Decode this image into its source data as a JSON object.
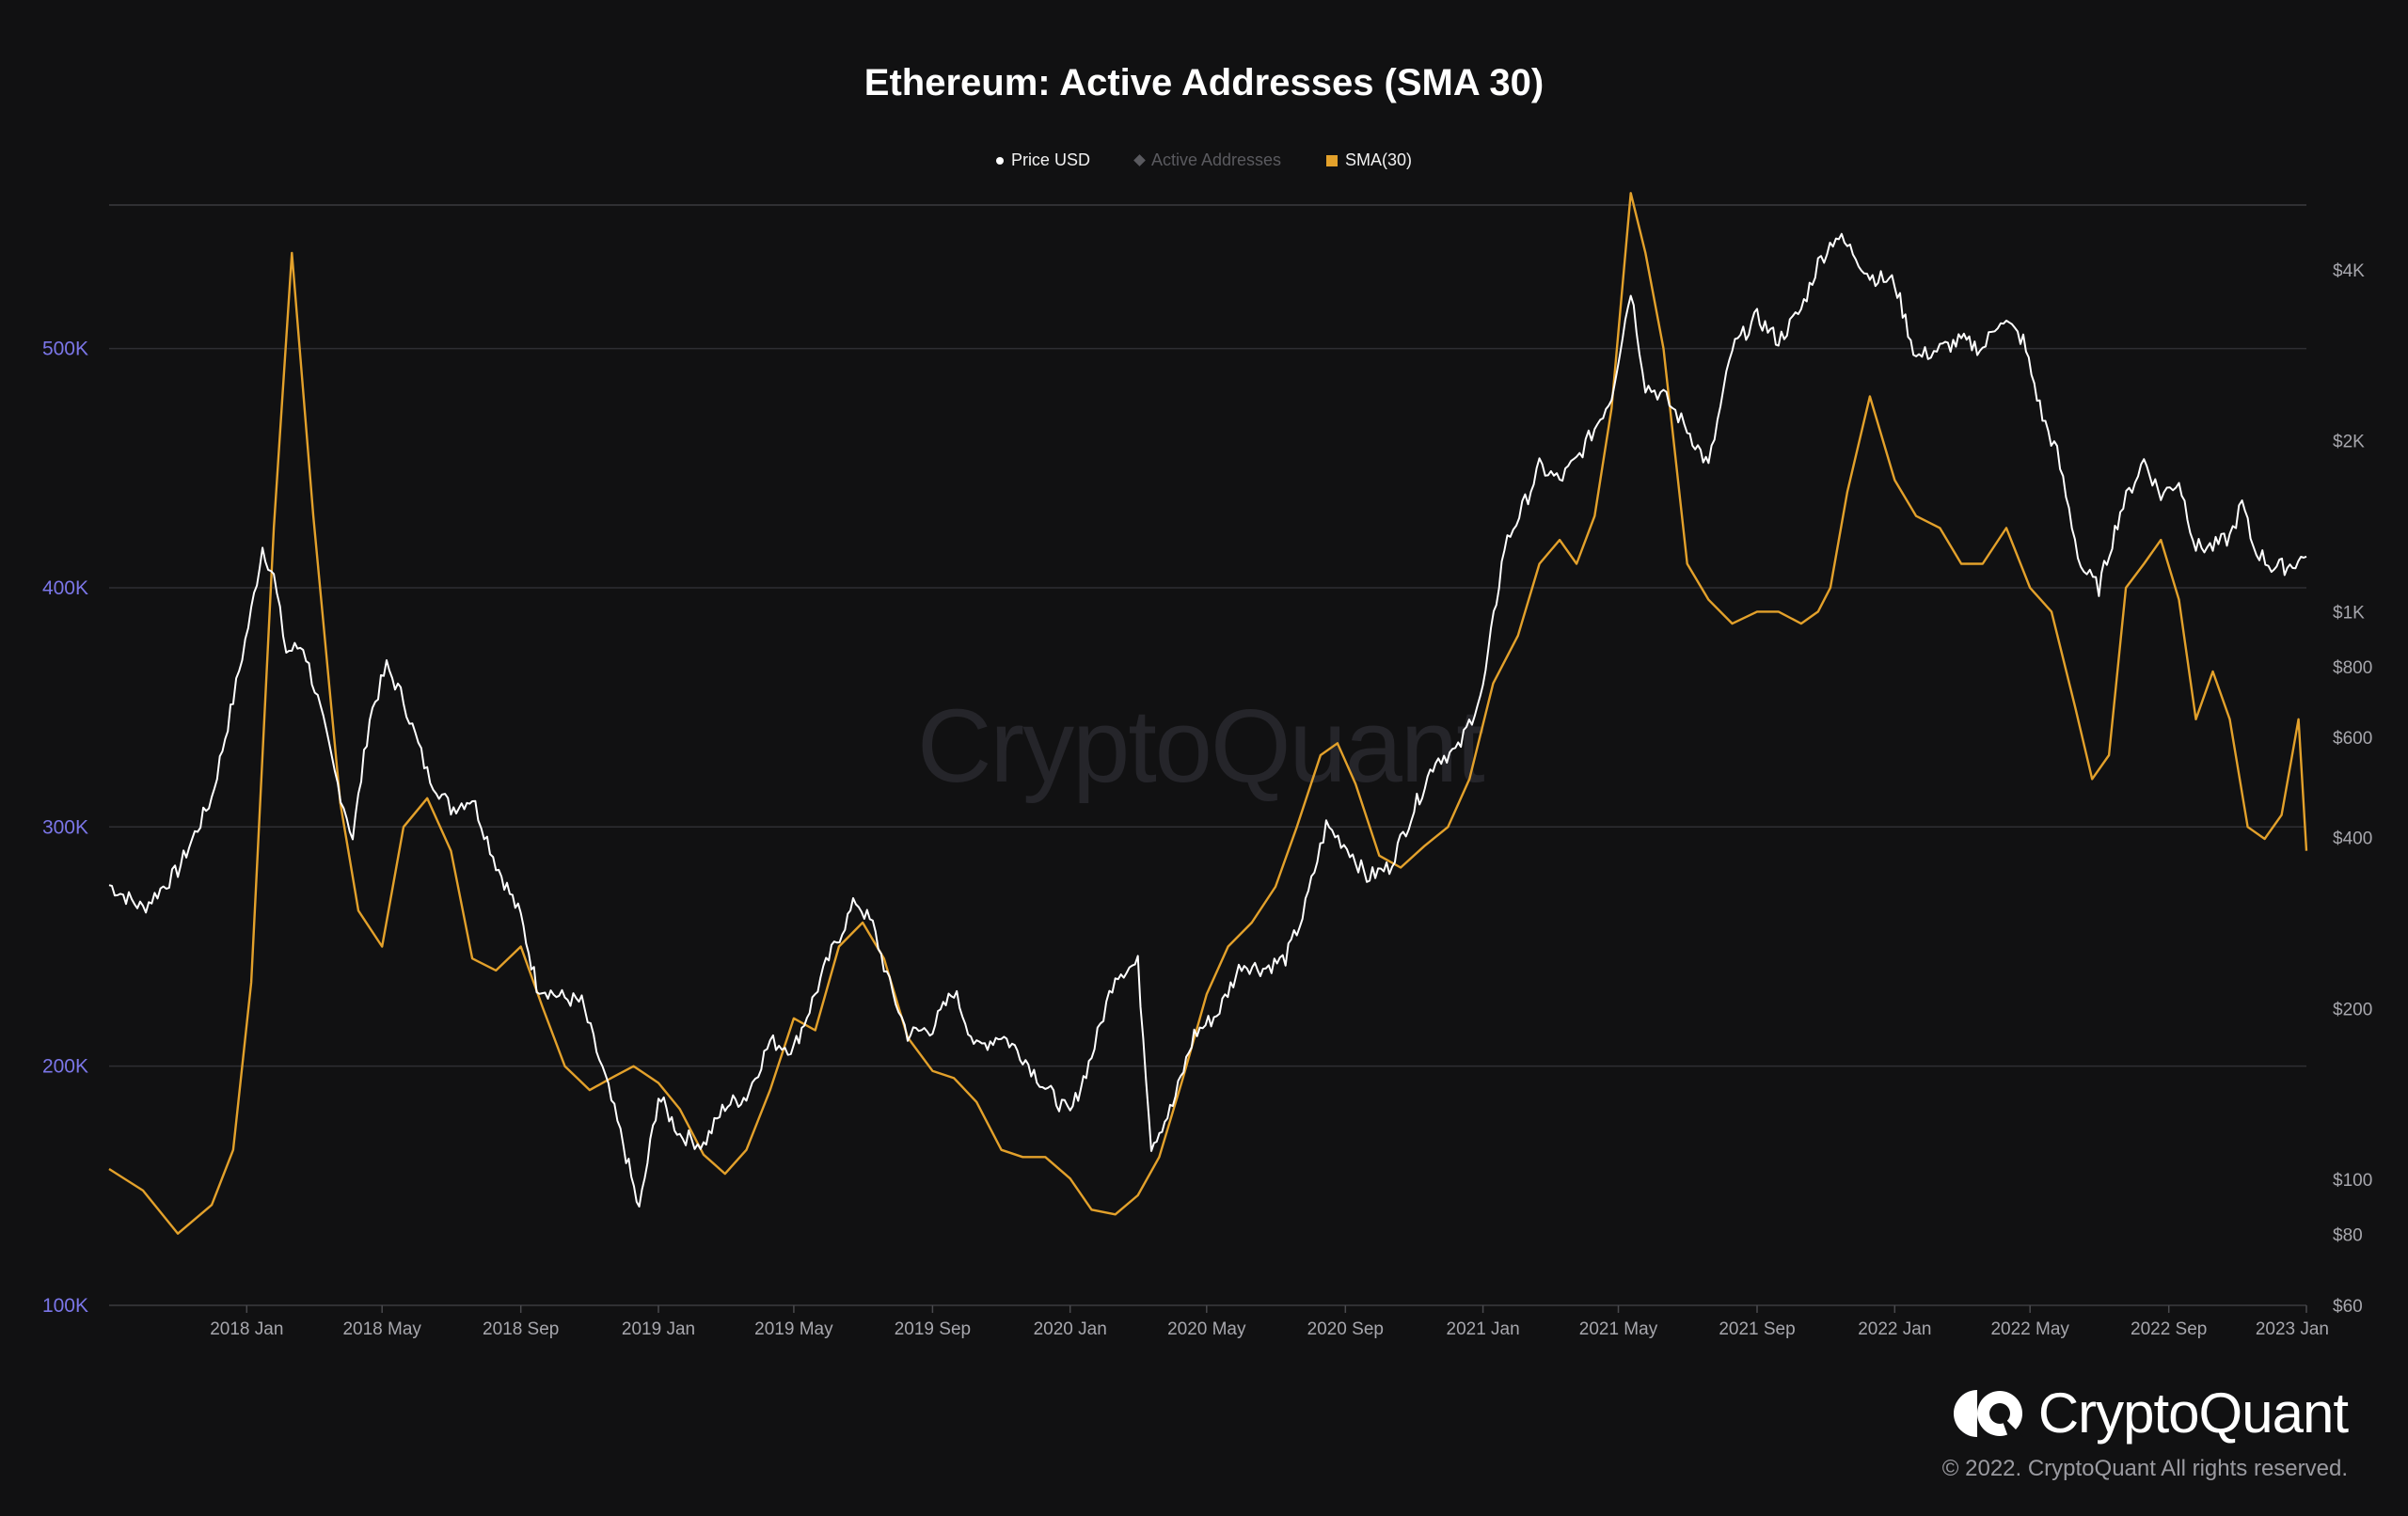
{
  "title": "Ethereum: Active Addresses (SMA 30)",
  "legend": [
    {
      "label": "Price USD",
      "marker": "dot"
    },
    {
      "label": "Active Addresses",
      "marker": "diamond"
    },
    {
      "label": "SMA(30)",
      "marker": "square"
    }
  ],
  "watermark": "CryptoQuant",
  "brand": {
    "name": "CryptoQuant",
    "copyright": "© 2022. CryptoQuant All rights reserved."
  },
  "colors": {
    "price": "#ffffff",
    "sma": "#e3a12b",
    "left_axis": "#7b76e8",
    "right_axis": "#a7a7ad",
    "active_addresses_legend": "#5a5a5f",
    "background": "#111112"
  },
  "chart_data": {
    "type": "line",
    "x_ticks": [
      "2018 Jan",
      "2018 May",
      "2018 Sep",
      "2019 Jan",
      "2019 May",
      "2019 Sep",
      "2020 Jan",
      "2020 May",
      "2020 Sep",
      "2021 Jan",
      "2021 May",
      "2021 Sep",
      "2022 Jan",
      "2022 May",
      "2022 Sep",
      "2023 Jan"
    ],
    "y_left": {
      "label": "",
      "ticks": [
        "100K",
        "200K",
        "300K",
        "400K",
        "500K"
      ],
      "range": [
        100000,
        560000
      ]
    },
    "y_right": {
      "label": "",
      "scale": "log",
      "ticks": [
        "$60",
        "$80",
        "$100",
        "$200",
        "$400",
        "$600",
        "$800",
        "$1K",
        "$2K",
        "$4K"
      ],
      "range": [
        60,
        5200
      ]
    },
    "grid": true,
    "legend_position": "top-center",
    "series": [
      {
        "name": "SMA(30)",
        "axis": "left",
        "x": [
          "2017-09-01",
          "2017-10-01",
          "2017-11-01",
          "2017-12-01",
          "2017-12-20",
          "2018-01-05",
          "2018-01-15",
          "2018-01-25",
          "2018-02-10",
          "2018-03-01",
          "2018-03-25",
          "2018-04-10",
          "2018-05-01",
          "2018-05-20",
          "2018-06-10",
          "2018-07-01",
          "2018-07-20",
          "2018-08-10",
          "2018-09-01",
          "2018-09-20",
          "2018-10-10",
          "2018-11-01",
          "2018-11-20",
          "2018-12-10",
          "2019-01-01",
          "2019-01-20",
          "2019-02-10",
          "2019-03-01",
          "2019-03-20",
          "2019-04-10",
          "2019-05-01",
          "2019-05-20",
          "2019-06-10",
          "2019-07-01",
          "2019-07-20",
          "2019-08-10",
          "2019-09-01",
          "2019-09-20",
          "2019-10-10",
          "2019-11-01",
          "2019-11-20",
          "2019-12-10",
          "2020-01-01",
          "2020-01-20",
          "2020-02-10",
          "2020-03-01",
          "2020-03-20",
          "2020-04-10",
          "2020-05-01",
          "2020-05-20",
          "2020-06-10",
          "2020-07-01",
          "2020-07-20",
          "2020-08-10",
          "2020-08-25",
          "2020-09-10",
          "2020-10-01",
          "2020-10-20",
          "2020-11-10",
          "2020-12-01",
          "2020-12-20",
          "2021-01-10",
          "2021-02-01",
          "2021-02-20",
          "2021-03-10",
          "2021-03-25",
          "2021-04-10",
          "2021-04-25",
          "2021-05-12",
          "2021-05-25",
          "2021-06-10",
          "2021-07-01",
          "2021-07-20",
          "2021-08-10",
          "2021-09-01",
          "2021-09-20",
          "2021-10-10",
          "2021-10-25",
          "2021-11-05",
          "2021-11-20",
          "2021-12-10",
          "2022-01-01",
          "2022-01-20",
          "2022-02-10",
          "2022-03-01",
          "2022-03-20",
          "2022-04-10",
          "2022-05-01",
          "2022-05-20",
          "2022-06-10",
          "2022-06-25",
          "2022-07-10",
          "2022-07-25",
          "2022-08-10",
          "2022-08-25",
          "2022-09-10",
          "2022-09-25",
          "2022-10-10",
          "2022-10-25",
          "2022-11-10",
          "2022-11-25",
          "2022-12-10",
          "2022-12-25",
          "2023-01-01"
        ],
        "y": [
          157000,
          148000,
          130000,
          142000,
          165000,
          235000,
          330000,
          425000,
          540000,
          430000,
          310000,
          265000,
          250000,
          300000,
          312000,
          290000,
          245000,
          240000,
          250000,
          225000,
          200000,
          190000,
          195000,
          200000,
          193000,
          182000,
          163000,
          155000,
          165000,
          190000,
          220000,
          215000,
          250000,
          260000,
          245000,
          212000,
          198000,
          195000,
          185000,
          165000,
          162000,
          162000,
          153000,
          140000,
          138000,
          146000,
          162000,
          195000,
          230000,
          250000,
          260000,
          275000,
          300000,
          330000,
          335000,
          318000,
          288000,
          283000,
          292000,
          300000,
          320000,
          360000,
          380000,
          410000,
          420000,
          410000,
          430000,
          475000,
          565000,
          540000,
          500000,
          410000,
          395000,
          385000,
          390000,
          390000,
          385000,
          390000,
          400000,
          440000,
          480000,
          445000,
          430000,
          425000,
          410000,
          410000,
          425000,
          400000,
          390000,
          350000,
          320000,
          330000,
          400000,
          410000,
          420000,
          395000,
          345000,
          365000,
          345000,
          300000,
          295000,
          305000,
          345000,
          290000
        ]
      },
      {
        "name": "Price USD",
        "axis": "right",
        "x": [
          "2017-09-01",
          "2017-10-01",
          "2017-11-01",
          "2017-12-01",
          "2017-12-20",
          "2018-01-05",
          "2018-01-15",
          "2018-01-25",
          "2018-02-05",
          "2018-02-20",
          "2018-03-05",
          "2018-03-20",
          "2018-04-05",
          "2018-04-20",
          "2018-05-05",
          "2018-05-20",
          "2018-06-10",
          "2018-07-01",
          "2018-07-20",
          "2018-08-10",
          "2018-09-01",
          "2018-09-15",
          "2018-10-05",
          "2018-10-25",
          "2018-11-15",
          "2018-12-01",
          "2018-12-15",
          "2019-01-01",
          "2019-01-20",
          "2019-02-10",
          "2019-03-01",
          "2019-03-20",
          "2019-04-10",
          "2019-05-01",
          "2019-05-15",
          "2019-06-01",
          "2019-06-25",
          "2019-07-10",
          "2019-07-25",
          "2019-08-10",
          "2019-09-01",
          "2019-09-20",
          "2019-10-10",
          "2019-11-01",
          "2019-11-20",
          "2019-12-10",
          "2020-01-01",
          "2020-01-20",
          "2020-02-10",
          "2020-03-01",
          "2020-03-13",
          "2020-04-01",
          "2020-04-20",
          "2020-05-10",
          "2020-06-01",
          "2020-06-20",
          "2020-07-10",
          "2020-07-25",
          "2020-08-15",
          "2020-09-05",
          "2020-09-20",
          "2020-10-10",
          "2020-11-01",
          "2020-11-20",
          "2020-12-10",
          "2021-01-01",
          "2021-01-20",
          "2021-02-10",
          "2021-02-20",
          "2021-03-10",
          "2021-03-25",
          "2021-04-10",
          "2021-04-25",
          "2021-05-12",
          "2021-05-25",
          "2021-06-10",
          "2021-07-01",
          "2021-07-20",
          "2021-08-10",
          "2021-09-01",
          "2021-09-20",
          "2021-10-10",
          "2021-10-25",
          "2021-11-10",
          "2021-11-25",
          "2021-12-10",
          "2022-01-01",
          "2022-01-20",
          "2022-02-10",
          "2022-03-01",
          "2022-03-20",
          "2022-04-05",
          "2022-04-25",
          "2022-05-12",
          "2022-05-25",
          "2022-06-15",
          "2022-07-01",
          "2022-07-20",
          "2022-08-10",
          "2022-08-25",
          "2022-09-10",
          "2022-09-25",
          "2022-10-10",
          "2022-10-25",
          "2022-11-05",
          "2022-11-15",
          "2022-12-01",
          "2022-12-15",
          "2023-01-01"
        ],
        "y": [
          330,
          300,
          350,
          470,
          700,
          1000,
          1300,
          1150,
          850,
          870,
          700,
          520,
          400,
          650,
          800,
          700,
          520,
          450,
          470,
          360,
          290,
          220,
          210,
          205,
          150,
          115,
          88,
          140,
          120,
          115,
          135,
          140,
          175,
          170,
          200,
          245,
          310,
          280,
          220,
          180,
          185,
          215,
          170,
          180,
          165,
          145,
          130,
          165,
          230,
          240,
          115,
          135,
          180,
          195,
          240,
          235,
          245,
          290,
          420,
          380,
          340,
          355,
          450,
          550,
          570,
          730,
          1300,
          1600,
          1800,
          1700,
          1850,
          2100,
          2400,
          3700,
          2500,
          2400,
          2100,
          1800,
          2900,
          3300,
          3000,
          3400,
          4100,
          4600,
          4300,
          3900,
          3800,
          2800,
          2900,
          3000,
          2900,
          3300,
          3000,
          2200,
          1900,
          1200,
          1100,
          1500,
          1850,
          1600,
          1700,
          1300,
          1300,
          1350,
          1550,
          1300,
          1200,
          1200,
          1250
        ]
      }
    ]
  }
}
